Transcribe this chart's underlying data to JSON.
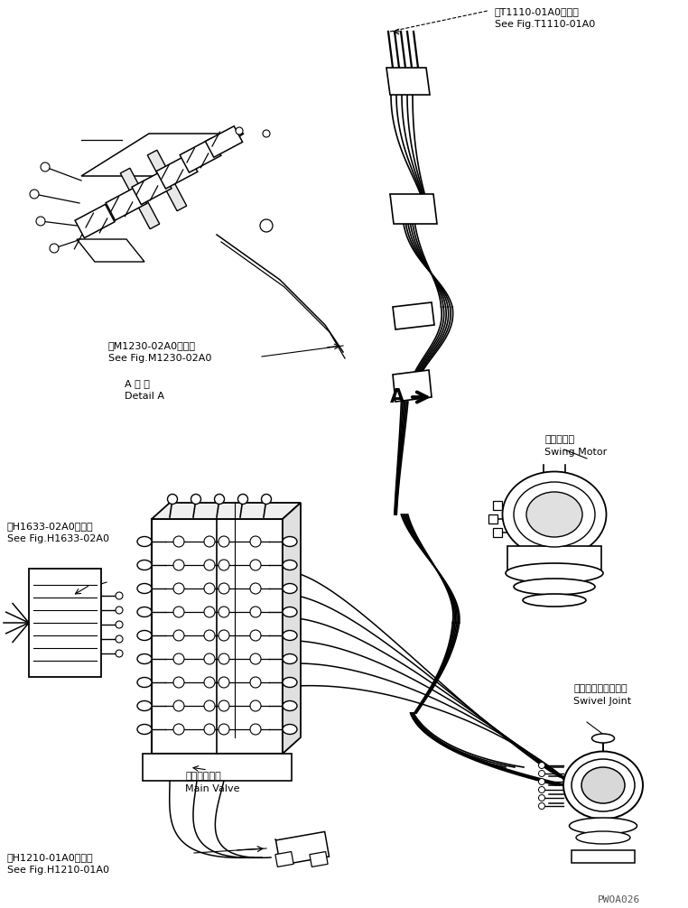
{
  "bg_color": "#ffffff",
  "line_color": "#000000",
  "fig_width": 7.62,
  "fig_height": 10.06,
  "dpi": 100,
  "labels": {
    "top_right_jp": "第T1110-01A0図参照",
    "top_right_en": "See Fig.T1110-01A0",
    "mid_left_jp": "第M1230-02A0図参照",
    "mid_left_en": "See Fig.M1230-02A0",
    "detail_jp": "A 詳 細",
    "detail_en": "Detail A",
    "swing_jp": "旋回モータ",
    "swing_en": "Swing Motor",
    "swivel_jp": "スイベルジョイント",
    "swivel_en": "Swivel Joint",
    "main_valve_jp": "メインバルブ",
    "main_valve_en": "Main Valve",
    "h1633_jp": "第H1633-02A0図参照",
    "h1633_en": "See Fig.H1633-02A0",
    "h1210_jp": "第H1210-01A0図参照",
    "h1210_en": "See Fig.H1210-01A0",
    "arrow_label": "A",
    "watermark": "PWOA026"
  }
}
